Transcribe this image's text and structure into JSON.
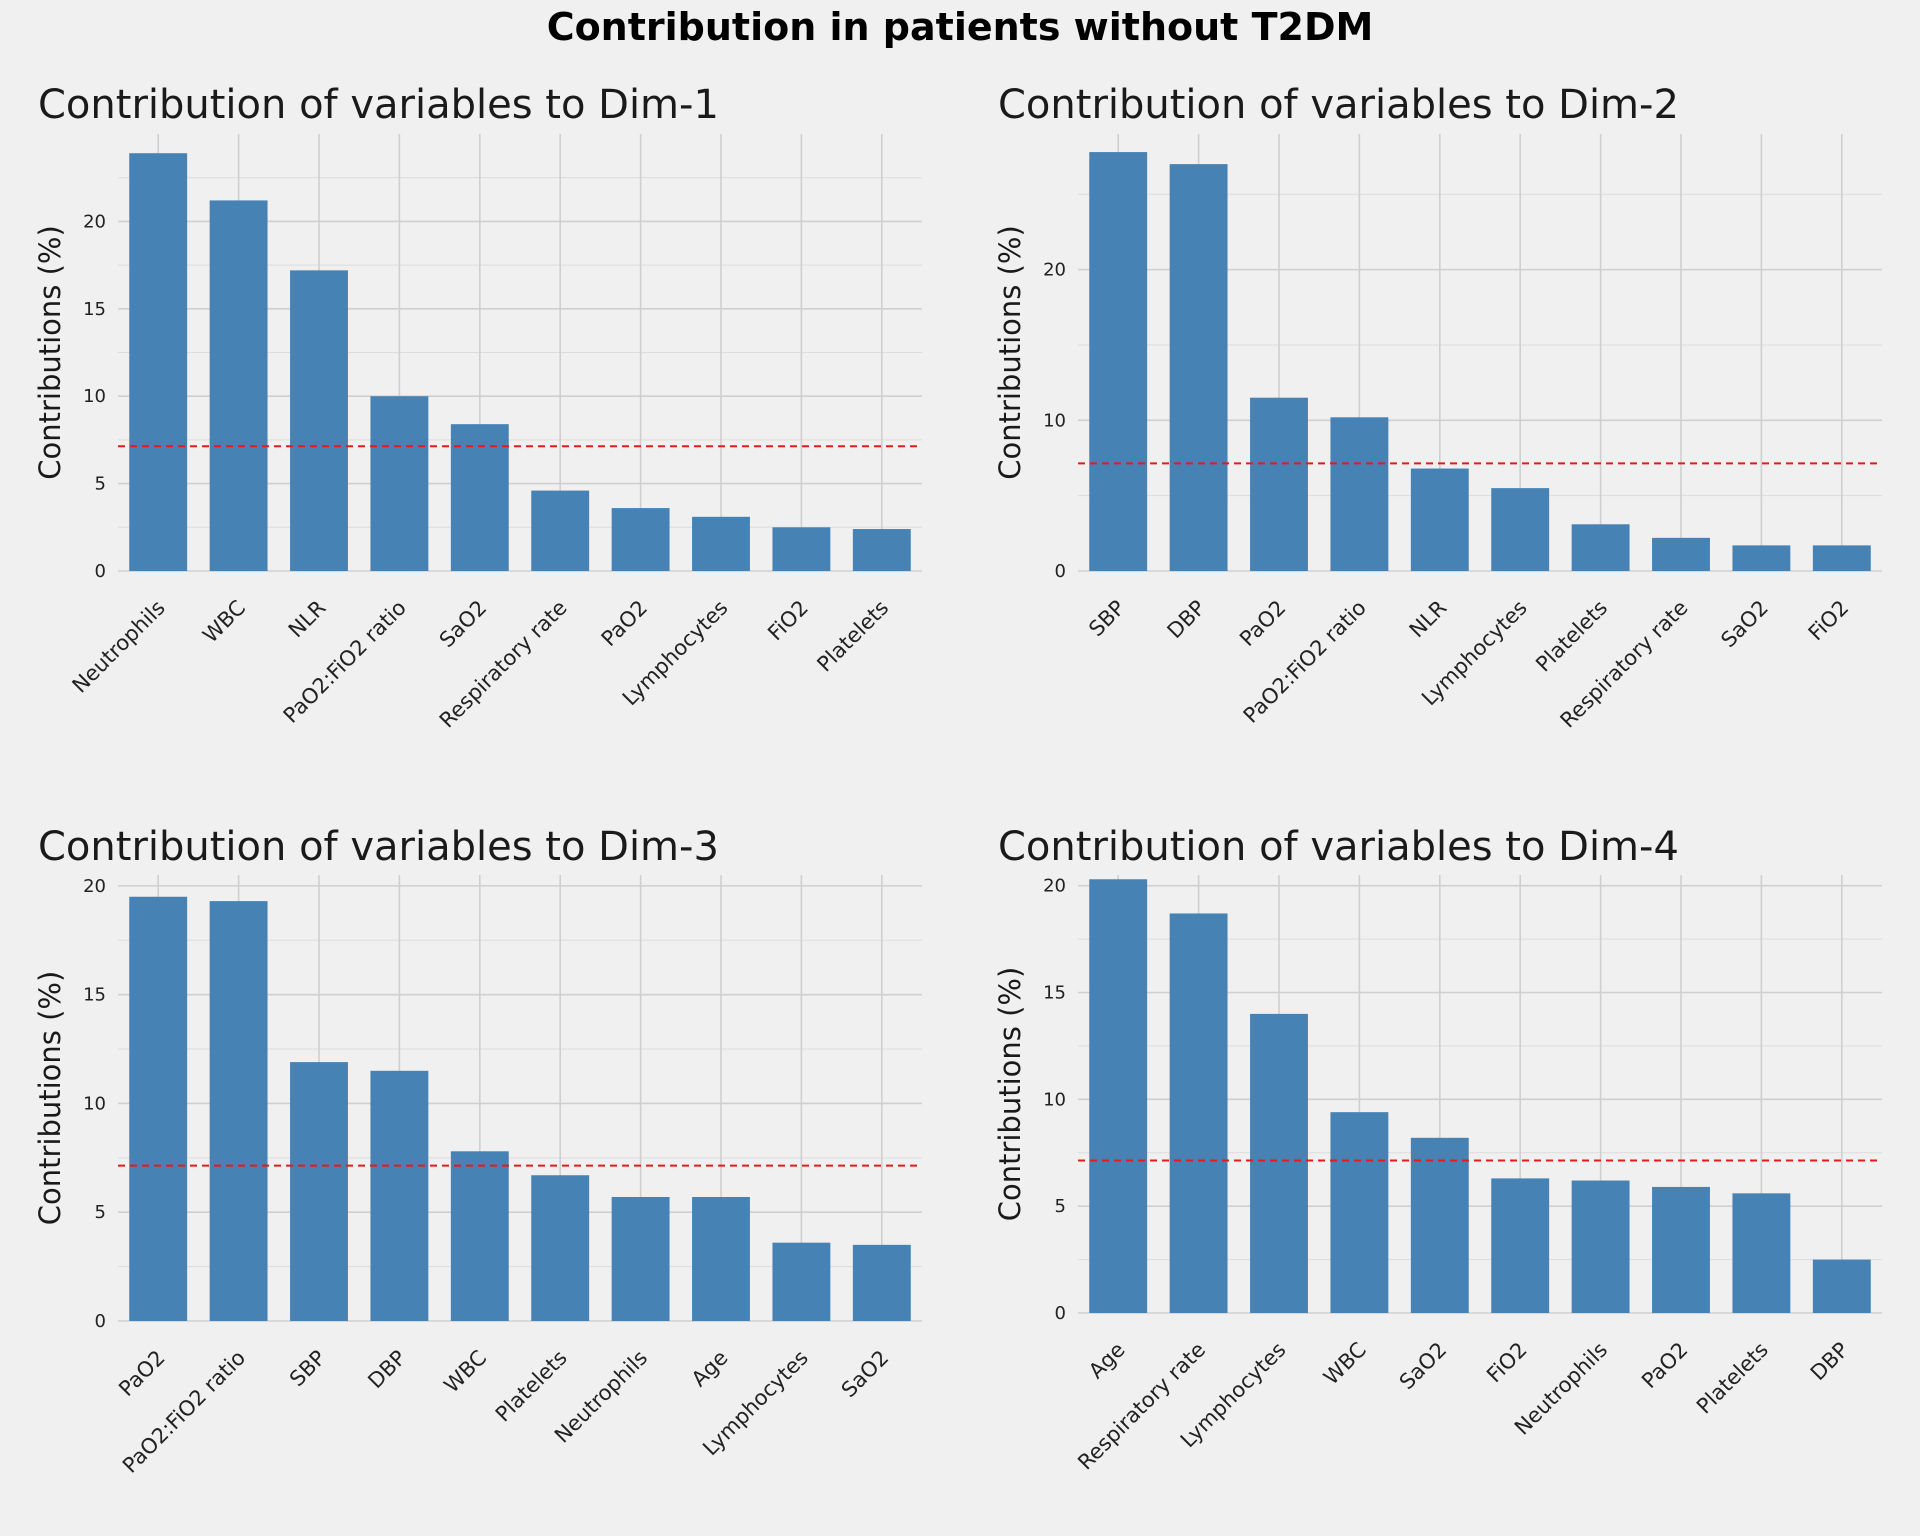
{
  "figure": {
    "title": "Contribution in patients without T2DM"
  },
  "chart_data": [
    {
      "type": "bar",
      "title": "Contribution of variables to Dim-1",
      "ylabel": "Contributions (%)",
      "xlabel": "",
      "categories": [
        "Neutrophils",
        "WBC",
        "NLR",
        "PaO2:FiO2 ratio",
        "SaO2",
        "Respiratory rate",
        "PaO2",
        "Lymphocytes",
        "FiO2",
        "Platelets"
      ],
      "values": [
        23.9,
        21.2,
        17.2,
        10.0,
        8.4,
        4.6,
        3.6,
        3.1,
        2.5,
        2.4
      ],
      "reference_line": 7.14,
      "yticks": [
        0,
        5,
        10,
        15,
        20
      ],
      "ylim": [
        0,
        25
      ],
      "bar_color": "#4682b4",
      "reference_color": "#e41a1c",
      "grid": true
    },
    {
      "type": "bar",
      "title": "Contribution of variables to Dim-2",
      "ylabel": "Contributions (%)",
      "xlabel": "",
      "categories": [
        "SBP",
        "DBP",
        "PaO2",
        "PaO2:FiO2 ratio",
        "NLR",
        "Lymphocytes",
        "Platelets",
        "Respiratory rate",
        "SaO2",
        "FiO2"
      ],
      "values": [
        27.8,
        27.0,
        11.5,
        10.2,
        6.8,
        5.5,
        3.1,
        2.2,
        1.7,
        1.7
      ],
      "reference_line": 7.14,
      "yticks": [
        0,
        10,
        20
      ],
      "ylim": [
        0,
        29
      ],
      "bar_color": "#4682b4",
      "reference_color": "#e41a1c",
      "grid": true
    },
    {
      "type": "bar",
      "title": "Contribution of variables to Dim-3",
      "ylabel": "Contributions (%)",
      "xlabel": "",
      "categories": [
        "PaO2",
        "PaO2:FiO2 ratio",
        "SBP",
        "DBP",
        "WBC",
        "Platelets",
        "Neutrophils",
        "Age",
        "Lymphocytes",
        "SaO2"
      ],
      "values": [
        19.5,
        19.3,
        11.9,
        11.5,
        7.8,
        6.7,
        5.7,
        5.7,
        3.6,
        3.5
      ],
      "reference_line": 7.14,
      "yticks": [
        0,
        5,
        10,
        15,
        20
      ],
      "ylim": [
        0,
        20.5
      ],
      "bar_color": "#4682b4",
      "reference_color": "#e41a1c",
      "grid": true
    },
    {
      "type": "bar",
      "title": "Contribution of variables to Dim-4",
      "ylabel": "Contributions (%)",
      "xlabel": "",
      "categories": [
        "Age",
        "Respiratory rate",
        "Lymphocytes",
        "WBC",
        "SaO2",
        "FiO2",
        "Neutrophils",
        "PaO2",
        "Platelets",
        "DBP"
      ],
      "values": [
        20.3,
        18.7,
        14.0,
        9.4,
        8.2,
        6.3,
        6.2,
        5.9,
        5.6,
        2.5
      ],
      "reference_line": 7.14,
      "yticks": [
        0,
        5,
        10,
        15,
        20
      ],
      "ylim": [
        0,
        20.5
      ],
      "bar_color": "#4682b4",
      "reference_color": "#e41a1c",
      "grid": true
    }
  ]
}
